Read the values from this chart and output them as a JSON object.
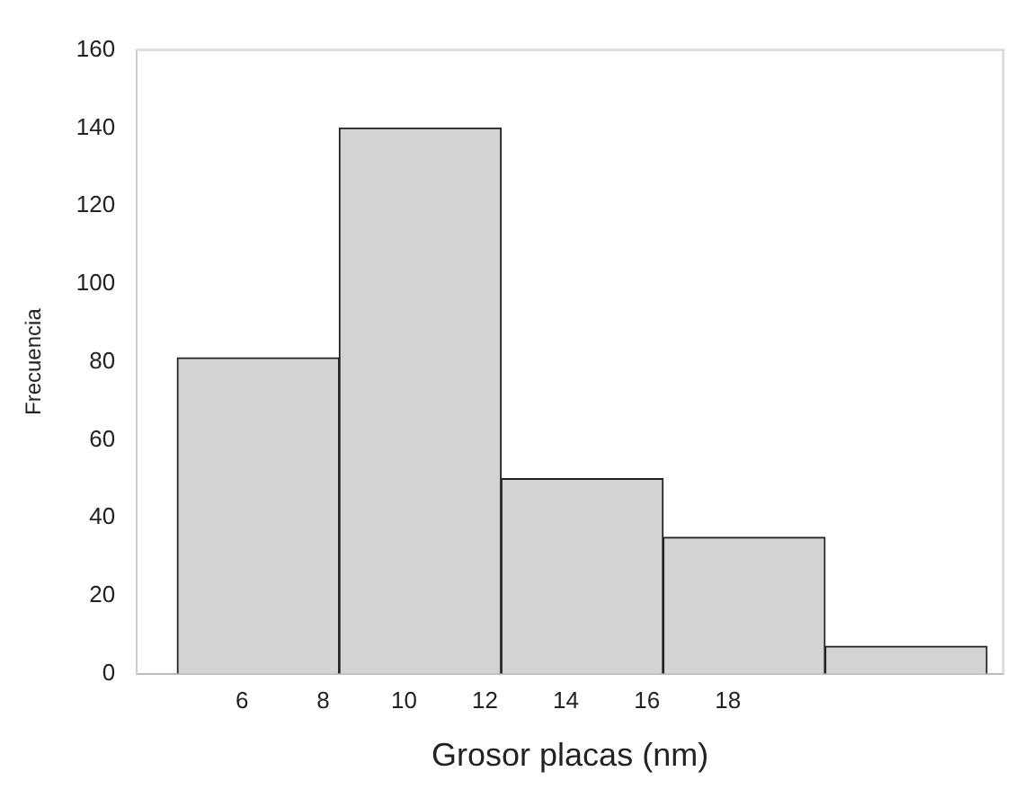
{
  "chart_data": {
    "type": "histogram",
    "xlabel": "Grosor placas (nm)",
    "ylabel": "Frecuencia",
    "bins": [
      4.4,
      8.4,
      12.4,
      16.4,
      20.4,
      24.4
    ],
    "values": [
      81,
      140,
      50,
      35,
      7
    ],
    "color": "#d3d3d3",
    "xlim": [
      3.4,
      24.8
    ],
    "xticks": [
      6,
      8,
      10,
      12,
      14,
      16,
      18
    ],
    "ylim": [
      0,
      160
    ],
    "yticks": [
      0,
      20,
      40,
      60,
      80,
      100,
      120,
      140,
      160
    ],
    "grid": false,
    "legend": false
  }
}
